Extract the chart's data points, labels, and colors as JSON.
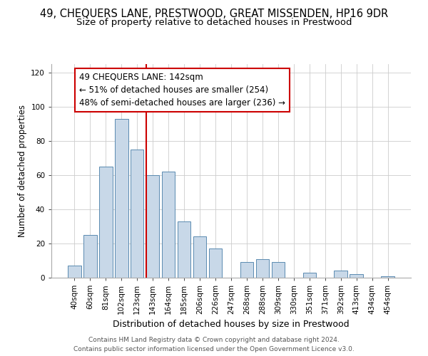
{
  "title": "49, CHEQUERS LANE, PRESTWOOD, GREAT MISSENDEN, HP16 9DR",
  "subtitle": "Size of property relative to detached houses in Prestwood",
  "xlabel": "Distribution of detached houses by size in Prestwood",
  "ylabel": "Number of detached properties",
  "bar_color": "#c8d8e8",
  "bar_edge_color": "#5a8ab0",
  "bin_labels": [
    "40sqm",
    "60sqm",
    "81sqm",
    "102sqm",
    "123sqm",
    "143sqm",
    "164sqm",
    "185sqm",
    "206sqm",
    "226sqm",
    "247sqm",
    "268sqm",
    "288sqm",
    "309sqm",
    "330sqm",
    "351sqm",
    "371sqm",
    "392sqm",
    "413sqm",
    "434sqm",
    "454sqm"
  ],
  "bar_heights": [
    7,
    25,
    65,
    93,
    75,
    60,
    62,
    33,
    24,
    17,
    0,
    9,
    11,
    9,
    0,
    3,
    0,
    4,
    2,
    0,
    1
  ],
  "vline_color": "#cc0000",
  "annotation_line1": "49 CHEQUERS LANE: 142sqm",
  "annotation_line2": "← 51% of detached houses are smaller (254)",
  "annotation_line3": "48% of semi-detached houses are larger (236) →",
  "annotation_box_color": "white",
  "annotation_box_edge": "#cc0000",
  "ylim": [
    0,
    125
  ],
  "yticks": [
    0,
    20,
    40,
    60,
    80,
    100,
    120
  ],
  "footer": "Contains HM Land Registry data © Crown copyright and database right 2024.\nContains public sector information licensed under the Open Government Licence v3.0.",
  "title_fontsize": 10.5,
  "subtitle_fontsize": 9.5,
  "xlabel_fontsize": 9,
  "ylabel_fontsize": 8.5,
  "tick_fontsize": 7.5,
  "annotation_fontsize": 8.5,
  "footer_fontsize": 6.5
}
